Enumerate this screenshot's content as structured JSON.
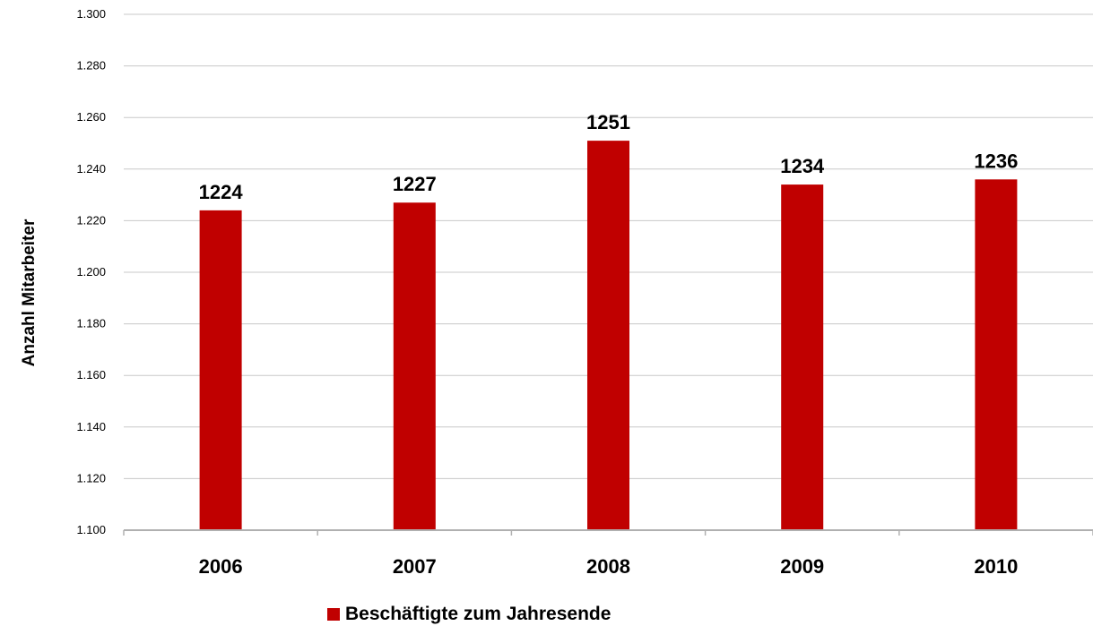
{
  "chart_data": {
    "type": "bar",
    "categories": [
      "2006",
      "2007",
      "2008",
      "2009",
      "2010"
    ],
    "series": [
      {
        "name": "Beschäftigte zum Jahresende",
        "values": [
          1224,
          1227,
          1251,
          1234,
          1236
        ],
        "color": "#c00000"
      }
    ],
    "data_labels": [
      "1224",
      "1227",
      "1251",
      "1234",
      "1236"
    ],
    "ylabel": "Anzahl Mitarbeiter",
    "xlabel": "",
    "ylim": [
      1100,
      1300
    ],
    "yticks": [
      1100,
      1120,
      1140,
      1160,
      1180,
      1200,
      1220,
      1240,
      1260,
      1280,
      1300
    ],
    "ytick_labels": [
      "1.100",
      "1.120",
      "1.140",
      "1.160",
      "1.180",
      "1.200",
      "1.220",
      "1.240",
      "1.260",
      "1.280",
      "1.300"
    ],
    "grid": true,
    "legend_position": "bottom"
  }
}
